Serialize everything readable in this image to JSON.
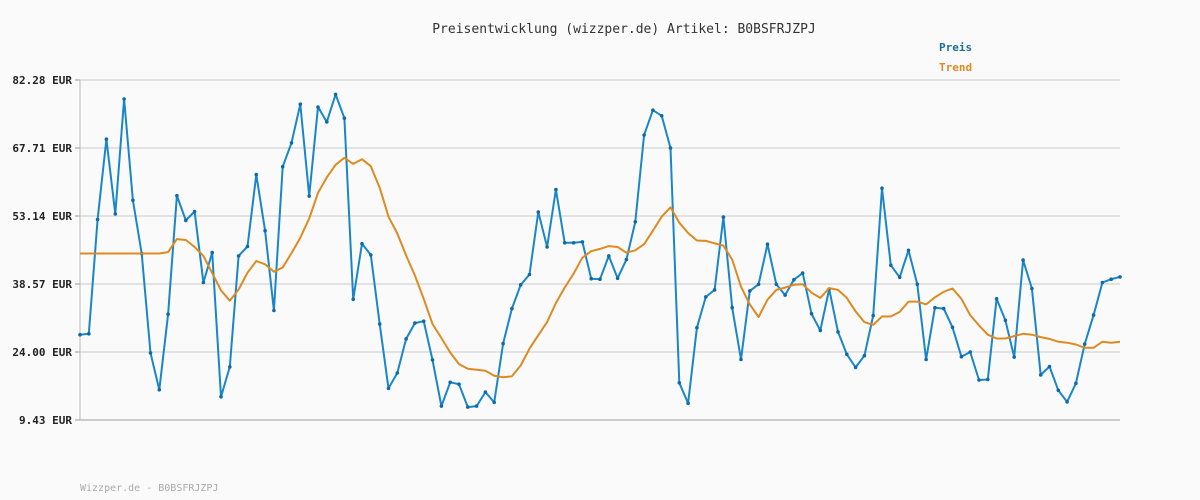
{
  "chart_data": {
    "type": "line",
    "title": "Preisentwicklung (wizzper.de) Artikel: B0BSFRJZPJ",
    "footer": "Wizzper.de - B0BSFRJZPJ",
    "ylim": [
      9.43,
      82.28
    ],
    "y_ticks": [
      "82.28 EUR",
      "67.71 EUR",
      "53.14 EUR",
      "38.57 EUR",
      "24.00 EUR",
      "9.43 EUR"
    ],
    "y_tick_values": [
      82.28,
      67.71,
      53.14,
      38.57,
      24.0,
      9.43
    ],
    "grid": true,
    "legend_position": "top-right",
    "series": [
      {
        "name": "Preis",
        "color": "#1a86c8",
        "values": [
          27.7,
          27.9,
          52.4,
          69.6,
          53.6,
          78.2,
          56.5,
          45.1,
          23.8,
          15.9,
          32.1,
          57.5,
          52.2,
          54.1,
          38.9,
          45.3,
          14.4,
          20.8,
          44.6,
          46.6,
          62.0,
          50.0,
          32.9,
          63.7,
          68.8,
          77.1,
          57.4,
          76.5,
          73.3,
          79.2,
          74.1,
          35.3,
          47.2,
          44.8,
          30.0,
          16.2,
          19.5,
          26.8,
          30.2,
          30.6,
          22.3,
          12.4,
          17.5,
          17.1,
          12.2,
          12.4,
          15.4,
          13.2,
          25.8,
          33.3,
          38.4,
          40.6,
          54.0,
          46.5,
          58.8,
          47.4,
          47.4,
          47.6,
          39.7,
          39.6,
          44.6,
          39.8,
          43.8,
          51.9,
          70.5,
          75.8,
          74.6,
          67.7,
          17.4,
          13.0,
          29.2,
          35.8,
          37.3,
          52.9,
          33.5,
          22.4,
          37.1,
          38.5,
          47.1,
          38.5,
          36.2,
          39.5,
          40.9,
          32.2,
          28.6,
          37.5,
          28.3,
          23.5,
          20.7,
          23.2,
          31.8,
          59.1,
          42.6,
          40.0,
          45.8,
          38.5,
          22.4,
          33.5,
          33.3,
          29.3,
          23.0,
          24.0,
          18.0,
          18.1,
          35.4,
          30.8,
          22.9,
          43.7,
          37.6,
          19.1,
          20.9,
          15.8,
          13.3,
          17.3,
          25.7,
          31.9,
          38.9,
          39.6,
          40.1
        ]
      },
      {
        "name": "Trend",
        "color": "#de8a22",
        "values": [
          45.1,
          45.1,
          45.1,
          45.1,
          45.1,
          45.1,
          45.1,
          45.1,
          45.1,
          45.1,
          45.4,
          48.2,
          48.0,
          46.5,
          44.6,
          40.9,
          37.2,
          35.0,
          37.4,
          41.0,
          43.5,
          42.8,
          41.2,
          42.1,
          45.2,
          48.5,
          52.6,
          58.1,
          61.4,
          64.1,
          65.6,
          64.3,
          65.3,
          63.8,
          59.2,
          53.0,
          49.4,
          44.7,
          40.4,
          35.4,
          30.0,
          27.0,
          23.9,
          21.4,
          20.4,
          20.2,
          20.0,
          18.9,
          18.6,
          18.8,
          21.1,
          24.7,
          27.6,
          30.4,
          34.5,
          37.8,
          40.8,
          44.2,
          45.6,
          46.1,
          46.7,
          46.5,
          45.3,
          45.8,
          47.1,
          50.0,
          53.0,
          55.0,
          51.7,
          49.5,
          47.9,
          47.8,
          47.3,
          46.8,
          43.8,
          38.0,
          34.2,
          31.5,
          35.2,
          37.3,
          37.8,
          38.4,
          38.5,
          36.7,
          35.6,
          37.7,
          37.3,
          35.6,
          32.7,
          30.4,
          29.8,
          31.6,
          31.6,
          32.6,
          34.8,
          34.8,
          34.2,
          35.7,
          36.9,
          37.6,
          35.4,
          31.9,
          29.7,
          27.7,
          26.9,
          26.9,
          27.4,
          27.9,
          27.7,
          27.2,
          26.8,
          26.2,
          26.0,
          25.6,
          24.9,
          24.9,
          26.2,
          26.0,
          26.2
        ]
      }
    ]
  }
}
